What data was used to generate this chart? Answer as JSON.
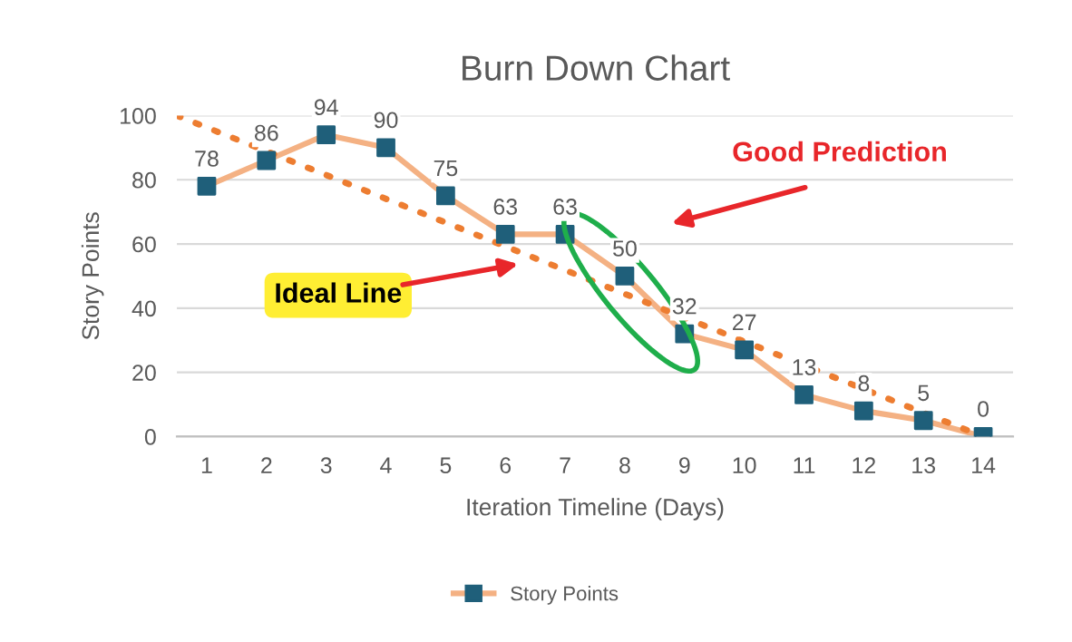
{
  "chart_data": {
    "type": "line",
    "title": "Burn Down Chart",
    "xlabel": "Iteration Timeline (Days)",
    "ylabel": "Story Points",
    "x": [
      1,
      2,
      3,
      4,
      5,
      6,
      7,
      8,
      9,
      10,
      11,
      12,
      13,
      14
    ],
    "xlim": [
      0.5,
      14.5
    ],
    "xticks": [
      1,
      2,
      3,
      4,
      5,
      6,
      7,
      8,
      9,
      10,
      11,
      12,
      13,
      14
    ],
    "ylim": [
      0,
      100
    ],
    "yticks": [
      0,
      20,
      40,
      60,
      80,
      100
    ],
    "grid": "y",
    "legend": "bottom",
    "series": [
      {
        "name": "Story Points",
        "type": "line",
        "color": "#f4b183",
        "colors": [
          "#1f5f7a",
          "#1f5f7a",
          "#1f5f7a",
          "#1f5f7a",
          "#1f5f7a",
          "#1f5f7a",
          "#1f5f7a",
          "#1f5f7a",
          "#1f5f7a",
          "#1f5f7a",
          "#1f5f7a",
          "#1f5f7a",
          "#1f5f7a",
          "#1f5f7a"
        ],
        "marker": "square",
        "line_style": "solid",
        "values": [
          78,
          86,
          94,
          90,
          75,
          63,
          63,
          50,
          32,
          27,
          13,
          8,
          5,
          0
        ],
        "value_labels": [
          "78",
          "86",
          "94",
          "90",
          "75",
          "63",
          "63",
          "50",
          "32",
          "27",
          "13",
          "8",
          "5",
          "0"
        ]
      },
      {
        "type": "line",
        "color": "#ed7d31",
        "marker": "none",
        "line_style": "dotted",
        "x": [
          0.5,
          14
        ],
        "values": [
          100,
          0
        ]
      }
    ],
    "annotations": [
      "Ideal Line",
      "Good Prediction"
    ]
  }
}
